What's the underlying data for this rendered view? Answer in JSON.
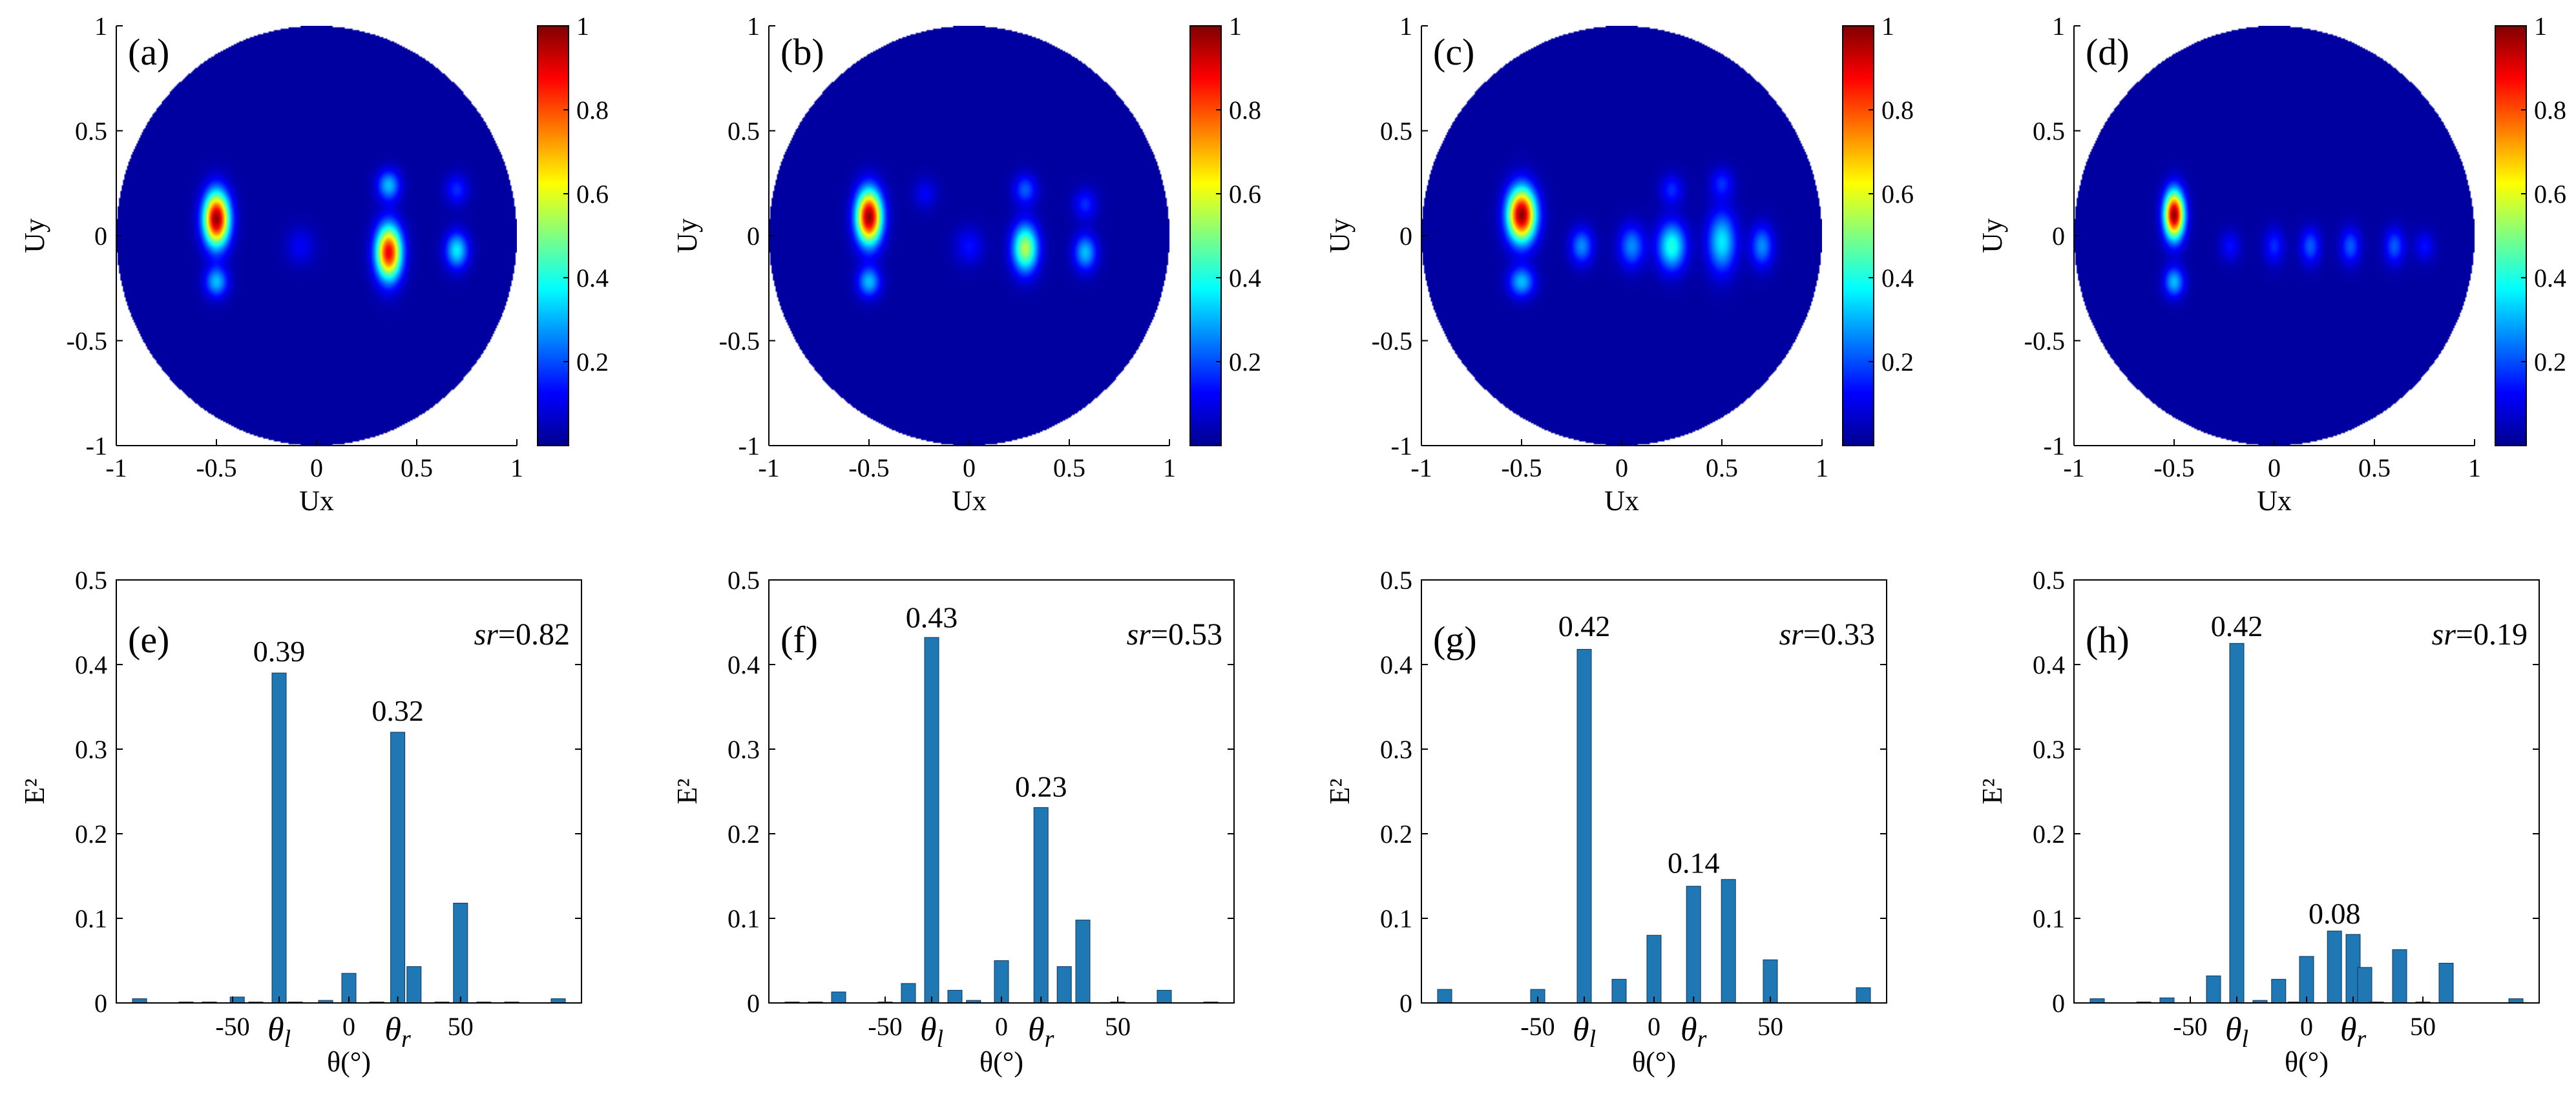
{
  "colors": {
    "bar": "#1f77b4",
    "disk_background": "#00008f"
  },
  "maps": {
    "xlabel": "Ux",
    "ylabel": "Uy",
    "x_ticks": [
      "-1",
      "-0.5",
      "0",
      "0.5",
      "1"
    ],
    "y_ticks": [
      "1",
      "0.5",
      "0",
      "-0.5",
      "-1"
    ],
    "colorbar_ticks": [
      "1",
      "0.8",
      "0.6",
      "0.4",
      "0.2"
    ],
    "panels": [
      {
        "label": "(a)",
        "spots": [
          {
            "ux": -0.5,
            "uy": 0.08,
            "amp": 1.0,
            "sx": 0.045,
            "sy": 0.09
          },
          {
            "ux": -0.5,
            "uy": -0.22,
            "amp": 0.3,
            "sx": 0.04,
            "sy": 0.05
          },
          {
            "ux": 0.36,
            "uy": -0.08,
            "amp": 0.9,
            "sx": 0.045,
            "sy": 0.09
          },
          {
            "ux": 0.36,
            "uy": 0.24,
            "amp": 0.3,
            "sx": 0.04,
            "sy": 0.05
          },
          {
            "ux": 0.7,
            "uy": -0.07,
            "amp": 0.35,
            "sx": 0.04,
            "sy": 0.06
          },
          {
            "ux": 0.7,
            "uy": 0.22,
            "amp": 0.15,
            "sx": 0.04,
            "sy": 0.05
          },
          {
            "ux": -0.08,
            "uy": -0.05,
            "amp": 0.1,
            "sx": 0.05,
            "sy": 0.06
          }
        ]
      },
      {
        "label": "(b)",
        "spots": [
          {
            "ux": -0.5,
            "uy": 0.09,
            "amp": 1.0,
            "sx": 0.045,
            "sy": 0.09
          },
          {
            "ux": -0.5,
            "uy": -0.22,
            "amp": 0.3,
            "sx": 0.04,
            "sy": 0.05
          },
          {
            "ux": 0.28,
            "uy": -0.06,
            "amp": 0.55,
            "sx": 0.045,
            "sy": 0.08
          },
          {
            "ux": 0.28,
            "uy": 0.22,
            "amp": 0.2,
            "sx": 0.04,
            "sy": 0.05
          },
          {
            "ux": 0.58,
            "uy": -0.08,
            "amp": 0.3,
            "sx": 0.04,
            "sy": 0.06
          },
          {
            "ux": 0.58,
            "uy": 0.15,
            "amp": 0.15,
            "sx": 0.04,
            "sy": 0.05
          },
          {
            "ux": 0.0,
            "uy": -0.05,
            "amp": 0.12,
            "sx": 0.05,
            "sy": 0.06
          },
          {
            "ux": -0.22,
            "uy": 0.2,
            "amp": 0.1,
            "sx": 0.04,
            "sy": 0.05
          }
        ]
      },
      {
        "label": "(c)",
        "spots": [
          {
            "ux": -0.5,
            "uy": 0.1,
            "amp": 1.0,
            "sx": 0.05,
            "sy": 0.09
          },
          {
            "ux": -0.5,
            "uy": -0.22,
            "amp": 0.3,
            "sx": 0.045,
            "sy": 0.05
          },
          {
            "ux": 0.25,
            "uy": -0.05,
            "amp": 0.4,
            "sx": 0.05,
            "sy": 0.08
          },
          {
            "ux": 0.5,
            "uy": -0.03,
            "amp": 0.35,
            "sx": 0.05,
            "sy": 0.1
          },
          {
            "ux": 0.05,
            "uy": -0.05,
            "amp": 0.25,
            "sx": 0.045,
            "sy": 0.07
          },
          {
            "ux": 0.7,
            "uy": -0.05,
            "amp": 0.25,
            "sx": 0.04,
            "sy": 0.07
          },
          {
            "ux": -0.2,
            "uy": -0.05,
            "amp": 0.25,
            "sx": 0.04,
            "sy": 0.06
          },
          {
            "ux": 0.25,
            "uy": 0.22,
            "amp": 0.15,
            "sx": 0.04,
            "sy": 0.05
          },
          {
            "ux": 0.5,
            "uy": 0.25,
            "amp": 0.15,
            "sx": 0.04,
            "sy": 0.05
          }
        ]
      },
      {
        "label": "(d)",
        "spots": [
          {
            "ux": -0.5,
            "uy": 0.1,
            "amp": 1.0,
            "sx": 0.035,
            "sy": 0.08
          },
          {
            "ux": -0.5,
            "uy": -0.22,
            "amp": 0.3,
            "sx": 0.035,
            "sy": 0.05
          },
          {
            "ux": 0.0,
            "uy": -0.05,
            "amp": 0.15,
            "sx": 0.035,
            "sy": 0.06
          },
          {
            "ux": 0.18,
            "uy": -0.05,
            "amp": 0.2,
            "sx": 0.035,
            "sy": 0.06
          },
          {
            "ux": 0.38,
            "uy": -0.05,
            "amp": 0.2,
            "sx": 0.035,
            "sy": 0.06
          },
          {
            "ux": 0.6,
            "uy": -0.05,
            "amp": 0.2,
            "sx": 0.035,
            "sy": 0.06
          },
          {
            "ux": -0.22,
            "uy": -0.05,
            "amp": 0.12,
            "sx": 0.035,
            "sy": 0.05
          },
          {
            "ux": 0.75,
            "uy": -0.05,
            "amp": 0.12,
            "sx": 0.035,
            "sy": 0.05
          }
        ]
      }
    ]
  },
  "chart_data": [
    {
      "type": "bar",
      "label": "(e)",
      "title": "",
      "xlabel": "θ(°)",
      "ylabel": "E²",
      "xlim": [
        -100,
        100
      ],
      "ylim": [
        0,
        0.5
      ],
      "y_ticks": [
        "0",
        "0.1",
        "0.2",
        "0.3",
        "0.4",
        "0.5"
      ],
      "x_ticks": [
        {
          "v": -50,
          "t": "-50"
        },
        {
          "v": -30,
          "t": "θl",
          "sub": "l"
        },
        {
          "v": 0,
          "t": "0"
        },
        {
          "v": 21,
          "t": "θr",
          "sub": "r"
        },
        {
          "v": 48,
          "t": "50"
        }
      ],
      "sr": "0.82",
      "peak_labels": [
        {
          "x": -30,
          "y": 0.39,
          "text": "0.39"
        },
        {
          "x": 21,
          "y": 0.32,
          "text": "0.32"
        }
      ],
      "x": [
        -90,
        -70,
        -60,
        -48,
        -40,
        -30,
        -23,
        -10,
        0,
        12,
        21,
        28,
        40,
        48,
        58,
        70,
        90
      ],
      "values": [
        0.005,
        0.001,
        0.001,
        0.007,
        0.001,
        0.39,
        0.001,
        0.003,
        0.035,
        0.001,
        0.32,
        0.043,
        0.001,
        0.118,
        0.001,
        0.001,
        0.005
      ]
    },
    {
      "type": "bar",
      "label": "(f)",
      "title": "",
      "xlabel": "θ(°)",
      "ylabel": "E²",
      "xlim": [
        -100,
        100
      ],
      "ylim": [
        0,
        0.5
      ],
      "y_ticks": [
        "0",
        "0.1",
        "0.2",
        "0.3",
        "0.4",
        "0.5"
      ],
      "x_ticks": [
        {
          "v": -50,
          "t": "-50"
        },
        {
          "v": -30,
          "t": "θl",
          "sub": "l"
        },
        {
          "v": 0,
          "t": "0"
        },
        {
          "v": 17,
          "t": "θr",
          "sub": "r"
        },
        {
          "v": 50,
          "t": "50"
        }
      ],
      "sr": "0.53",
      "peak_labels": [
        {
          "x": -30,
          "y": 0.43,
          "text": "0.43"
        },
        {
          "x": 17,
          "y": 0.23,
          "text": "0.23"
        }
      ],
      "x": [
        -90,
        -80,
        -70,
        -50,
        -40,
        -30,
        -20,
        -12,
        0,
        17,
        27,
        35,
        50,
        70,
        90
      ],
      "values": [
        0.001,
        0.001,
        0.013,
        0.001,
        0.023,
        0.432,
        0.015,
        0.003,
        0.05,
        0.231,
        0.043,
        0.098,
        0.001,
        0.015,
        0.001
      ]
    },
    {
      "type": "bar",
      "label": "(g)",
      "title": "",
      "xlabel": "θ(°)",
      "ylabel": "E²",
      "xlim": [
        -100,
        100
      ],
      "ylim": [
        0,
        0.5
      ],
      "y_ticks": [
        "0",
        "0.1",
        "0.2",
        "0.3",
        "0.4",
        "0.5"
      ],
      "x_ticks": [
        {
          "v": -50,
          "t": "-50"
        },
        {
          "v": -30,
          "t": "θl",
          "sub": "l"
        },
        {
          "v": 0,
          "t": "0"
        },
        {
          "v": 17,
          "t": "θr",
          "sub": "r"
        },
        {
          "v": 50,
          "t": "50"
        }
      ],
      "sr": "0.33",
      "peak_labels": [
        {
          "x": -30,
          "y": 0.42,
          "text": "0.42"
        },
        {
          "x": 17,
          "y": 0.14,
          "text": "0.14"
        }
      ],
      "x": [
        -90,
        -50,
        -30,
        -15,
        0,
        17,
        32,
        50,
        90
      ],
      "values": [
        0.016,
        0.016,
        0.418,
        0.028,
        0.08,
        0.138,
        0.146,
        0.051,
        0.018
      ]
    },
    {
      "type": "bar",
      "label": "(h)",
      "title": "",
      "xlabel": "θ(°)",
      "ylabel": "E²",
      "xlim": [
        -100,
        100
      ],
      "ylim": [
        0,
        0.5
      ],
      "y_ticks": [
        "0",
        "0.1",
        "0.2",
        "0.3",
        "0.4",
        "0.5"
      ],
      "x_ticks": [
        {
          "v": -50,
          "t": "-50"
        },
        {
          "v": -30,
          "t": "θl",
          "sub": "l"
        },
        {
          "v": 0,
          "t": "0"
        },
        {
          "v": 20,
          "t": "θr",
          "sub": "r"
        },
        {
          "v": 50,
          "t": "50"
        }
      ],
      "sr": "0.19",
      "peak_labels": [
        {
          "x": -30,
          "y": 0.42,
          "text": "0.42"
        },
        {
          "x": 12,
          "y": 0.08,
          "text": "0.08"
        }
      ],
      "x": [
        -90,
        -70,
        -60,
        -40,
        -30,
        -20,
        -12,
        -5,
        0,
        12,
        20,
        25,
        30,
        40,
        50,
        60,
        90
      ],
      "values": [
        0.005,
        0.001,
        0.006,
        0.032,
        0.425,
        0.003,
        0.028,
        0.001,
        0.055,
        0.085,
        0.081,
        0.042,
        0.001,
        0.063,
        0.001,
        0.047,
        0.005
      ]
    }
  ]
}
